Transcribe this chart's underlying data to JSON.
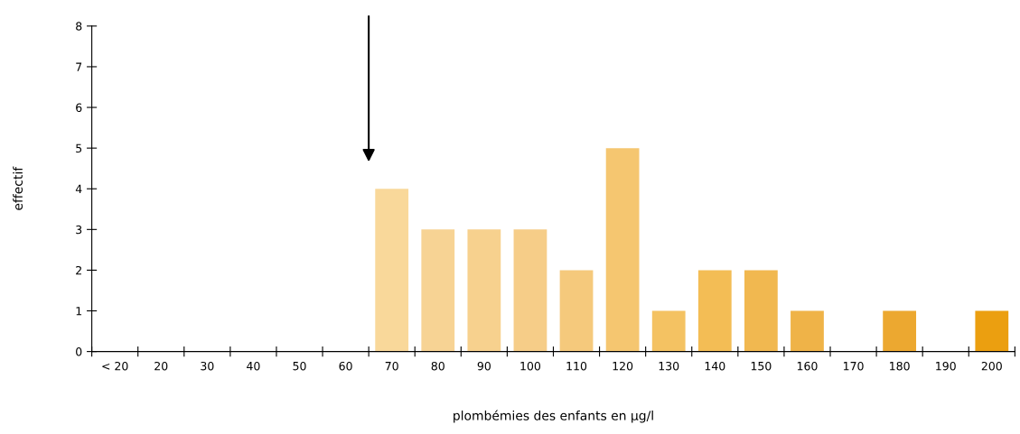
{
  "chart_data": {
    "type": "bar",
    "xlabel": "plombémies des enfants en µg/l",
    "ylabel": "effectif",
    "categories": [
      "< 20",
      "20",
      "30",
      "40",
      "50",
      "60",
      "70",
      "80",
      "90",
      "100",
      "110",
      "120",
      "130",
      "140",
      "150",
      "160",
      "170",
      "180",
      "190",
      "200"
    ],
    "values": [
      0,
      0,
      0,
      0,
      0,
      0,
      4,
      3,
      3,
      3,
      2,
      5,
      1,
      2,
      2,
      1,
      0,
      1,
      0,
      1
    ],
    "colors": [
      "#f8d89a",
      "#f8d89a",
      "#f8d89a",
      "#f8d89a",
      "#f8d89a",
      "#f8d89a",
      "#f9d89a",
      "#f7d394",
      "#f7d18e",
      "#f6cd88",
      "#f5c97c",
      "#f5c670",
      "#f4c262",
      "#f3bd55",
      "#f1b850",
      "#efb348",
      "#efb040",
      "#eca830",
      "#eca52a",
      "#eb9f10"
    ],
    "ylim": [
      0,
      8
    ],
    "yticks": [
      0,
      1,
      2,
      3,
      4,
      5,
      6,
      7,
      8
    ],
    "grid": false
  }
}
